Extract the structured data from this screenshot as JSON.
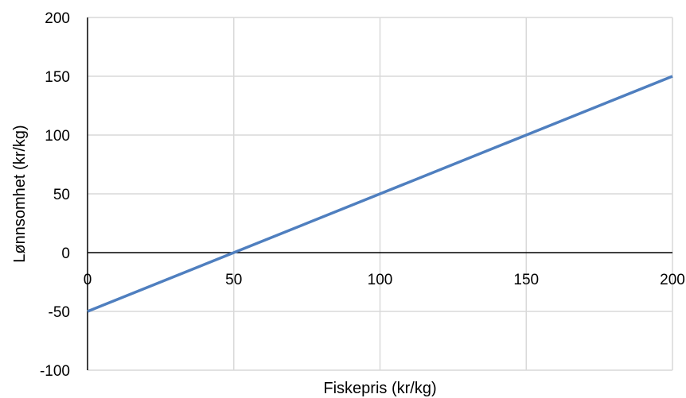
{
  "chart_data": {
    "type": "line",
    "title": "",
    "xlabel": "Fiskepris (kr/kg)",
    "ylabel": "Lønnsomhet (kr/kg)",
    "xlim": [
      0,
      200
    ],
    "ylim": [
      -100,
      200
    ],
    "x_ticks": [
      0,
      50,
      100,
      150,
      200
    ],
    "y_ticks": [
      -100,
      -50,
      0,
      50,
      100,
      150,
      200
    ],
    "x_tick_labels": [
      "0",
      "50",
      "100",
      "150",
      "200"
    ],
    "y_tick_labels": [
      "-100",
      "-50",
      "0",
      "50",
      "100",
      "150",
      "200"
    ],
    "grid": {
      "x": true,
      "y": true
    },
    "legend": "none",
    "colors": {
      "series": "#4F7FBF",
      "grid": "#D9D9D9",
      "zero_line": "#000000",
      "axis": "#000000"
    },
    "series": [
      {
        "x": [
          0,
          50,
          100,
          150,
          200
        ],
        "y": [
          -50,
          0,
          50,
          100,
          150
        ]
      }
    ]
  }
}
